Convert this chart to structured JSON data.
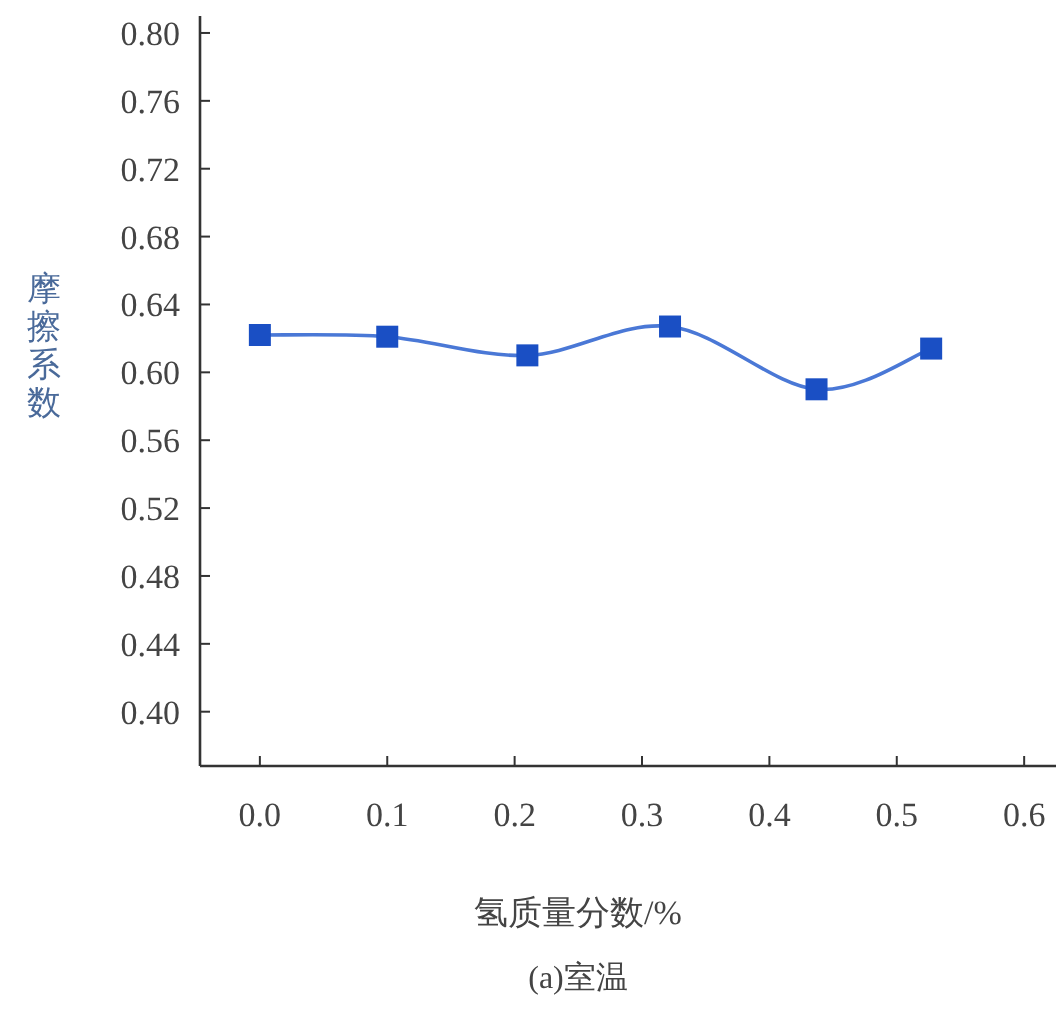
{
  "chart_data": {
    "type": "line",
    "xlabel": "氢质量分数/%",
    "ylabel": "摩擦系数",
    "annotations": [
      "(a)室温"
    ],
    "x": [
      0.0,
      0.1,
      0.21,
      0.322,
      0.437,
      0.527
    ],
    "series": [
      {
        "color": "#1a4fc4",
        "values": [
          0.622,
          0.621,
          0.61,
          0.627,
          0.59,
          0.614
        ]
      }
    ],
    "marker": "square",
    "line_style": "solid",
    "grid": false,
    "xlim": [
      -0.047,
      0.625
    ],
    "xticks": [
      {
        "value": 0.0,
        "label": "0.0"
      },
      {
        "value": 0.1,
        "label": "0.1"
      },
      {
        "value": 0.2,
        "label": "0.2"
      },
      {
        "value": 0.3,
        "label": "0.3"
      },
      {
        "value": 0.4,
        "label": "0.4"
      },
      {
        "value": 0.5,
        "label": "0.5"
      },
      {
        "value": 0.6,
        "label": "0.6"
      }
    ],
    "ylim": [
      0.368,
      0.81
    ],
    "yticks": [
      {
        "value": 0.4,
        "label": "0.40"
      },
      {
        "value": 0.44,
        "label": "0.44"
      },
      {
        "value": 0.48,
        "label": "0.48"
      },
      {
        "value": 0.52,
        "label": "0.52"
      },
      {
        "value": 0.56,
        "label": "0.56"
      },
      {
        "value": 0.6,
        "label": "0.60"
      },
      {
        "value": 0.64,
        "label": "0.64"
      },
      {
        "value": 0.68,
        "label": "0.68"
      },
      {
        "value": 0.72,
        "label": "0.72"
      },
      {
        "value": 0.76,
        "label": "0.76"
      },
      {
        "value": 0.8,
        "label": "0.80"
      }
    ]
  }
}
